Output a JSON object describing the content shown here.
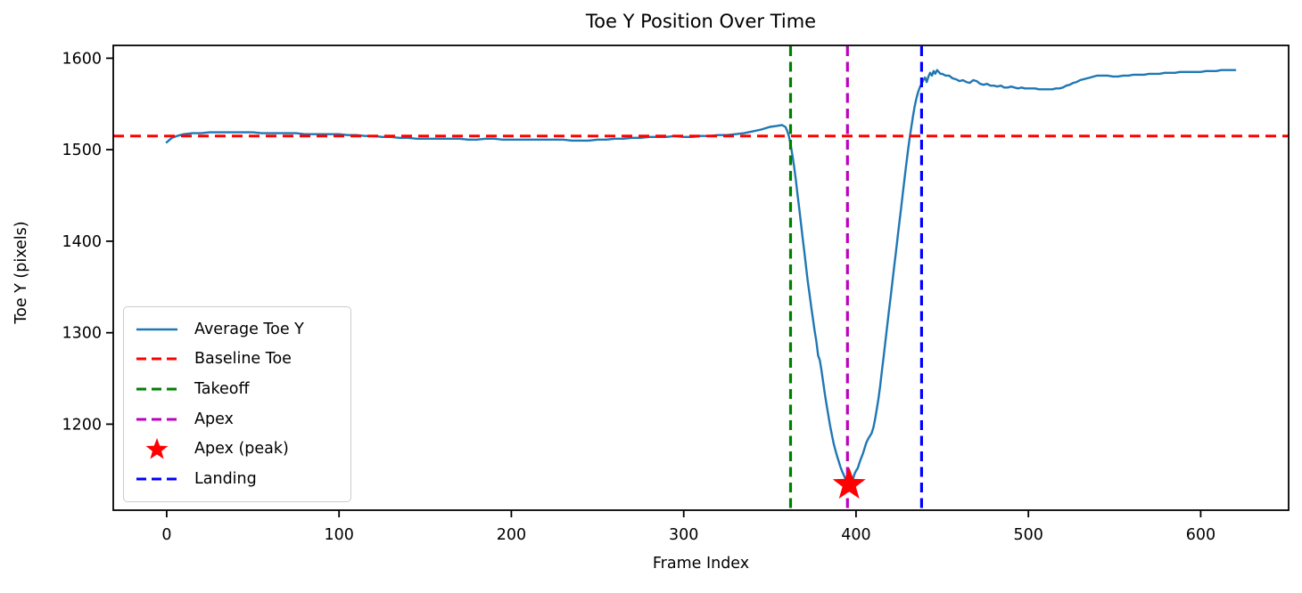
{
  "figure": {
    "title": "Toe Y Position Over Time",
    "xlabel": "Frame Index",
    "ylabel": "Toe Y (pixels)"
  },
  "chart_data": {
    "type": "line",
    "title": "Toe Y Position Over Time",
    "xlabel": "Frame Index",
    "ylabel": "Toe Y (pixels)",
    "xlim": [
      -31,
      651
    ],
    "ylim": [
      1106,
      1614
    ],
    "xticks": [
      0,
      100,
      200,
      300,
      400,
      500,
      600
    ],
    "yticks": [
      1200,
      1300,
      1400,
      1500,
      1600
    ],
    "grid": false,
    "legend_position": "lower-left",
    "series": [
      {
        "name": "Average Toe Y",
        "color": "#1f77b4",
        "style": "solid",
        "points": [
          [
            0,
            1508
          ],
          [
            3,
            1513
          ],
          [
            6,
            1515
          ],
          [
            10,
            1517
          ],
          [
            15,
            1518
          ],
          [
            20,
            1518
          ],
          [
            25,
            1519
          ],
          [
            30,
            1519
          ],
          [
            35,
            1519
          ],
          [
            40,
            1519
          ],
          [
            45,
            1519
          ],
          [
            50,
            1519
          ],
          [
            55,
            1518
          ],
          [
            60,
            1518
          ],
          [
            65,
            1518
          ],
          [
            70,
            1518
          ],
          [
            75,
            1518
          ],
          [
            80,
            1517
          ],
          [
            85,
            1517
          ],
          [
            90,
            1517
          ],
          [
            95,
            1517
          ],
          [
            100,
            1517
          ],
          [
            105,
            1516
          ],
          [
            110,
            1516
          ],
          [
            115,
            1515
          ],
          [
            120,
            1515
          ],
          [
            125,
            1514
          ],
          [
            130,
            1514
          ],
          [
            135,
            1513
          ],
          [
            140,
            1513
          ],
          [
            145,
            1512
          ],
          [
            150,
            1512
          ],
          [
            155,
            1512
          ],
          [
            160,
            1512
          ],
          [
            165,
            1512
          ],
          [
            170,
            1512
          ],
          [
            175,
            1511
          ],
          [
            180,
            1511
          ],
          [
            185,
            1512
          ],
          [
            190,
            1512
          ],
          [
            195,
            1511
          ],
          [
            200,
            1511
          ],
          [
            205,
            1511
          ],
          [
            210,
            1511
          ],
          [
            215,
            1511
          ],
          [
            220,
            1511
          ],
          [
            225,
            1511
          ],
          [
            230,
            1511
          ],
          [
            235,
            1510
          ],
          [
            240,
            1510
          ],
          [
            245,
            1510
          ],
          [
            250,
            1511
          ],
          [
            255,
            1511
          ],
          [
            260,
            1512
          ],
          [
            265,
            1512
          ],
          [
            270,
            1513
          ],
          [
            275,
            1513
          ],
          [
            280,
            1514
          ],
          [
            285,
            1514
          ],
          [
            290,
            1514
          ],
          [
            295,
            1515
          ],
          [
            300,
            1514
          ],
          [
            305,
            1514
          ],
          [
            310,
            1515
          ],
          [
            315,
            1515
          ],
          [
            320,
            1516
          ],
          [
            325,
            1516
          ],
          [
            330,
            1517
          ],
          [
            335,
            1518
          ],
          [
            340,
            1520
          ],
          [
            345,
            1522
          ],
          [
            350,
            1525
          ],
          [
            354,
            1526
          ],
          [
            357,
            1527
          ],
          [
            359,
            1525
          ],
          [
            360,
            1521
          ],
          [
            361,
            1515
          ],
          [
            362,
            1506
          ],
          [
            363,
            1495
          ],
          [
            364,
            1482
          ],
          [
            365,
            1468
          ],
          [
            366,
            1452
          ],
          [
            367,
            1436
          ],
          [
            368,
            1420
          ],
          [
            369,
            1404
          ],
          [
            370,
            1388
          ],
          [
            371,
            1372
          ],
          [
            372,
            1356
          ],
          [
            373,
            1342
          ],
          [
            374,
            1328
          ],
          [
            375,
            1315
          ],
          [
            376,
            1302
          ],
          [
            377,
            1290
          ],
          [
            378,
            1275
          ],
          [
            379,
            1270
          ],
          [
            380,
            1258
          ],
          [
            381,
            1245
          ],
          [
            382,
            1232
          ],
          [
            383,
            1220
          ],
          [
            384,
            1209
          ],
          [
            385,
            1198
          ],
          [
            386,
            1188
          ],
          [
            387,
            1179
          ],
          [
            388,
            1172
          ],
          [
            389,
            1165
          ],
          [
            390,
            1159
          ],
          [
            391,
            1153
          ],
          [
            392,
            1148
          ],
          [
            393,
            1144
          ],
          [
            394,
            1140
          ],
          [
            395,
            1136
          ],
          [
            396,
            1134
          ],
          [
            397,
            1135
          ],
          [
            398,
            1139
          ],
          [
            399,
            1145
          ],
          [
            400,
            1149
          ],
          [
            401,
            1152
          ],
          [
            402,
            1158
          ],
          [
            403,
            1163
          ],
          [
            404,
            1168
          ],
          [
            405,
            1174
          ],
          [
            406,
            1180
          ],
          [
            407,
            1184
          ],
          [
            408,
            1187
          ],
          [
            409,
            1190
          ],
          [
            410,
            1196
          ],
          [
            411,
            1205
          ],
          [
            412,
            1216
          ],
          [
            413,
            1228
          ],
          [
            414,
            1242
          ],
          [
            415,
            1258
          ],
          [
            416,
            1274
          ],
          [
            417,
            1290
          ],
          [
            418,
            1306
          ],
          [
            419,
            1322
          ],
          [
            420,
            1338
          ],
          [
            421,
            1354
          ],
          [
            422,
            1370
          ],
          [
            423,
            1386
          ],
          [
            424,
            1402
          ],
          [
            425,
            1418
          ],
          [
            426,
            1434
          ],
          [
            427,
            1450
          ],
          [
            428,
            1466
          ],
          [
            429,
            1482
          ],
          [
            430,
            1497
          ],
          [
            431,
            1511
          ],
          [
            432,
            1524
          ],
          [
            433,
            1536
          ],
          [
            434,
            1547
          ],
          [
            435,
            1556
          ],
          [
            436,
            1563
          ],
          [
            437,
            1568
          ],
          [
            438,
            1572
          ],
          [
            439,
            1576
          ],
          [
            440,
            1579
          ],
          [
            441,
            1574
          ],
          [
            442,
            1580
          ],
          [
            443,
            1584
          ],
          [
            444,
            1581
          ],
          [
            445,
            1586
          ],
          [
            446,
            1583
          ],
          [
            447,
            1587
          ],
          [
            448,
            1585
          ],
          [
            449,
            1583
          ],
          [
            450,
            1583
          ],
          [
            452,
            1581
          ],
          [
            454,
            1581
          ],
          [
            456,
            1578
          ],
          [
            458,
            1577
          ],
          [
            460,
            1575
          ],
          [
            462,
            1576
          ],
          [
            464,
            1574
          ],
          [
            466,
            1573
          ],
          [
            468,
            1576
          ],
          [
            470,
            1575
          ],
          [
            472,
            1572
          ],
          [
            474,
            1571
          ],
          [
            476,
            1572
          ],
          [
            478,
            1570
          ],
          [
            480,
            1570
          ],
          [
            482,
            1569
          ],
          [
            484,
            1570
          ],
          [
            486,
            1568
          ],
          [
            488,
            1568
          ],
          [
            490,
            1569
          ],
          [
            492,
            1568
          ],
          [
            494,
            1567
          ],
          [
            496,
            1568
          ],
          [
            498,
            1567
          ],
          [
            500,
            1567
          ],
          [
            502,
            1567
          ],
          [
            504,
            1567
          ],
          [
            506,
            1566
          ],
          [
            508,
            1566
          ],
          [
            510,
            1566
          ],
          [
            512,
            1566
          ],
          [
            514,
            1566
          ],
          [
            516,
            1567
          ],
          [
            518,
            1567
          ],
          [
            520,
            1568
          ],
          [
            522,
            1570
          ],
          [
            524,
            1571
          ],
          [
            526,
            1573
          ],
          [
            528,
            1574
          ],
          [
            530,
            1576
          ],
          [
            532,
            1577
          ],
          [
            534,
            1578
          ],
          [
            536,
            1579
          ],
          [
            538,
            1580
          ],
          [
            540,
            1581
          ],
          [
            543,
            1581
          ],
          [
            546,
            1581
          ],
          [
            549,
            1580
          ],
          [
            552,
            1580
          ],
          [
            555,
            1581
          ],
          [
            558,
            1581
          ],
          [
            561,
            1582
          ],
          [
            564,
            1582
          ],
          [
            567,
            1582
          ],
          [
            570,
            1583
          ],
          [
            573,
            1583
          ],
          [
            576,
            1583
          ],
          [
            579,
            1584
          ],
          [
            582,
            1584
          ],
          [
            585,
            1584
          ],
          [
            588,
            1585
          ],
          [
            591,
            1585
          ],
          [
            594,
            1585
          ],
          [
            597,
            1585
          ],
          [
            600,
            1585
          ],
          [
            603,
            1586
          ],
          [
            606,
            1586
          ],
          [
            609,
            1586
          ],
          [
            612,
            1587
          ],
          [
            615,
            1587
          ],
          [
            618,
            1587
          ],
          [
            620,
            1587
          ]
        ]
      }
    ],
    "baseline": {
      "label": "Baseline Toe",
      "value": 1515,
      "color": "#ff0000",
      "style": "dashed"
    },
    "events": [
      {
        "label": "Takeoff",
        "frame": 362,
        "color": "#008000",
        "style": "dashed"
      },
      {
        "label": "Apex",
        "frame": 395,
        "color": "#bf00bf",
        "style": "dashed"
      },
      {
        "label": "Landing",
        "frame": 438,
        "color": "#0000ff",
        "style": "dashed"
      }
    ],
    "apex_marker": {
      "label": "Apex (peak)",
      "frame": 396,
      "value": 1134,
      "color": "#ff0000",
      "marker": "star"
    },
    "legend": [
      {
        "label": "Average Toe Y",
        "swatch": "solid-line",
        "color": "#1f77b4"
      },
      {
        "label": "Baseline Toe",
        "swatch": "dashed-line",
        "color": "#ff0000"
      },
      {
        "label": "Takeoff",
        "swatch": "dashed-line",
        "color": "#008000"
      },
      {
        "label": "Apex",
        "swatch": "dashed-line",
        "color": "#bf00bf"
      },
      {
        "label": "Apex (peak)",
        "swatch": "star",
        "color": "#ff0000"
      },
      {
        "label": "Landing",
        "swatch": "dashed-line",
        "color": "#0000ff"
      }
    ]
  }
}
